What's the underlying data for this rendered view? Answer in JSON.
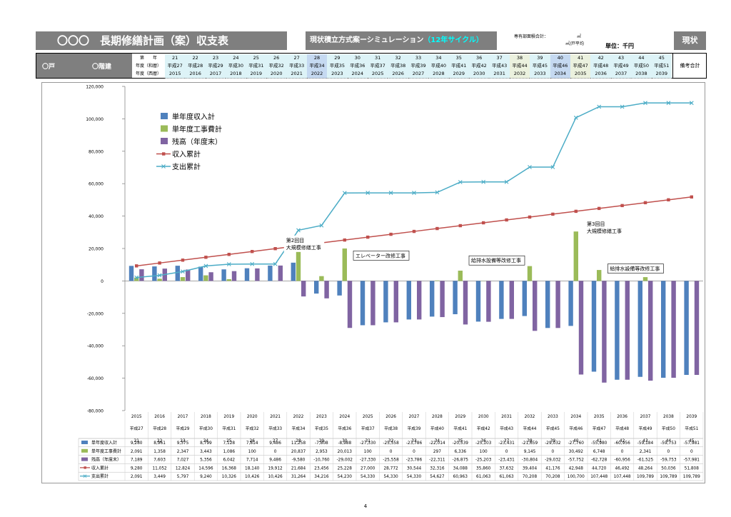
{
  "header": {
    "title": "〇〇〇　長期修繕計画（案）収支表",
    "simulation_label": "現状積立方式案ーシミュレーション",
    "cycle_label": "（12年サイクル）",
    "area_label": "専有部面積合計：",
    "area_unit1": "㎡",
    "area_unit2": "㎡/戸平均",
    "unit_label": "単位：千円",
    "status_label": "現状"
  },
  "year_header": {
    "units_label": "〇戸",
    "stories_label": "〇階建",
    "row_labels": [
      "第　　年",
      "年度（和暦）",
      "年度（西暦）"
    ],
    "period_numbers": [
      "21",
      "22",
      "23",
      "24",
      "25",
      "26",
      "27",
      "28",
      "29",
      "30",
      "31",
      "32",
      "33",
      "34",
      "35",
      "36",
      "37",
      "38",
      "39",
      "40",
      "41",
      "42",
      "43",
      "44",
      "45"
    ],
    "heisei": [
      "平成27",
      "平成28",
      "平成29",
      "平成30",
      "平成31",
      "平成32",
      "平成33",
      "平成34",
      "平成35",
      "平成36",
      "平成37",
      "平成38",
      "平成39",
      "平成40",
      "平成41",
      "平成42",
      "平成43",
      "平成44",
      "平成45",
      "平成46",
      "平成47",
      "平成48",
      "平成49",
      "平成50",
      "平成51"
    ],
    "years": [
      "2015",
      "2016",
      "2017",
      "2018",
      "2019",
      "2020",
      "2021",
      "2022",
      "2023",
      "2024",
      "2025",
      "2026",
      "2027",
      "2028",
      "2029",
      "2030",
      "2031",
      "2032",
      "2033",
      "2034",
      "2035",
      "2036",
      "2037",
      "2038",
      "2039"
    ],
    "highlight_colors": {
      "28": "#c5d9f1",
      "38": "#ebf1de",
      "40": "#c5d9f1",
      "41": "#ebf1de"
    },
    "remarks_label": "備考合計"
  },
  "chart_data": {
    "type": "bar",
    "ylim": [
      -80000,
      120000
    ],
    "yticks": [
      -80000,
      -60000,
      -40000,
      -20000,
      0,
      20000,
      40000,
      60000,
      80000,
      100000,
      120000
    ],
    "ytick_labels": [
      "-80,000",
      "-60,000",
      "-40,000",
      "-20,000",
      "0",
      "20,000",
      "40,000",
      "60,000",
      "80,000",
      "100,000",
      "120,000"
    ],
    "categories": [
      "2015",
      "2016",
      "2017",
      "2018",
      "2019",
      "2020",
      "2021",
      "2022",
      "2023",
      "2024",
      "2025",
      "2026",
      "2027",
      "2028",
      "2029",
      "2030",
      "2031",
      "2032",
      "2033",
      "2034",
      "2035",
      "2036",
      "2037",
      "2038",
      "2039"
    ],
    "category_heisei": [
      "平成27",
      "平成28",
      "平成29",
      "平成30",
      "平成31",
      "平成32",
      "平成33",
      "平成34",
      "平成35",
      "平成36",
      "平成37",
      "平成38",
      "平成39",
      "平成40",
      "平成41",
      "平成42",
      "平成43",
      "平成44",
      "平成45",
      "平成46",
      "平成47",
      "平成48",
      "平成49",
      "平成50",
      "平成51"
    ],
    "category_period": [
      "21",
      "22",
      "23",
      "24",
      "25",
      "26",
      "27",
      "28",
      "29",
      "30",
      "31",
      "32",
      "33",
      "34",
      "35",
      "36",
      "37",
      "38",
      "39",
      "40",
      "41",
      "42",
      "43",
      "44",
      "45"
    ],
    "series": [
      {
        "name": "単年度収入計",
        "kind": "bar",
        "color": "#4f81bd",
        "values": [
          9280,
          8961,
          9375,
          8799,
          7128,
          7814,
          9486,
          11258,
          -7808,
          -8988,
          -27330,
          -25558,
          -23786,
          -22014,
          -20539,
          -25103,
          -23431,
          -21659,
          -29032,
          -27760,
          -55980,
          -60956,
          -59184,
          -59753,
          -57981
        ],
        "labels": [
          "9,280",
          "8,961",
          "9,375",
          "8,799",
          "7,128",
          "7,814",
          "9,486",
          "11,258",
          "-7,808",
          "-8,988",
          "-27,330",
          "-25,558",
          "-23,786",
          "-22,014",
          "-20,539",
          "-25,103",
          "-23,431",
          "-21,659",
          "-29,032",
          "-27,760",
          "-55,980",
          "-60,956",
          "-59,184",
          "-59,753",
          "-57,981"
        ]
      },
      {
        "name": "単年度工事費計",
        "kind": "bar",
        "color": "#9bbb59",
        "values": [
          2091,
          1358,
          2347,
          3443,
          1086,
          100,
          0,
          20837,
          2953,
          20013,
          100,
          0,
          0,
          297,
          6336,
          100,
          0,
          9145,
          0,
          30492,
          6748,
          0,
          2341,
          0,
          0
        ],
        "labels": [
          "2,091",
          "1,358",
          "2,347",
          "3,443",
          "1,086",
          "100",
          "0",
          "20,837",
          "2,953",
          "20,013",
          "100",
          "0",
          "0",
          "297",
          "6,336",
          "100",
          "0",
          "9,145",
          "0",
          "30,492",
          "6,748",
          "0",
          "2,341",
          "0",
          "0"
        ]
      },
      {
        "name": "残高（年度末）",
        "kind": "bar",
        "color": "#8064a2",
        "values": [
          7189,
          7603,
          7027,
          5356,
          6042,
          7714,
          9486,
          -9580,
          -10760,
          -29002,
          -27330,
          -25558,
          -23786,
          -22311,
          -26875,
          -25203,
          -23431,
          -30804,
          -29032,
          -57752,
          -62728,
          -60956,
          -61525,
          -59753,
          -57981
        ],
        "labels": [
          "7,189",
          "7,603",
          "7,027",
          "5,356",
          "6,042",
          "7,714",
          "9,486",
          "-9,580",
          "-10,760",
          "-29,002",
          "-27,330",
          "-25,558",
          "-23,786",
          "-22,311",
          "-26,875",
          "-25,203",
          "-23,431",
          "-30,804",
          "-29,032",
          "-57,752",
          "-62,728",
          "-60,956",
          "-61,525",
          "-59,753",
          "-57,981"
        ]
      },
      {
        "name": "収入累計",
        "kind": "line",
        "color": "#c0504d",
        "marker": "square",
        "values": [
          9280,
          11052,
          12824,
          14596,
          16368,
          18140,
          19912,
          21684,
          23456,
          25228,
          27000,
          28772,
          30544,
          32316,
          34088,
          35860,
          37632,
          39404,
          41176,
          42948,
          44720,
          46492,
          48264,
          50036,
          51808
        ],
        "labels": [
          "9,280",
          "11,052",
          "12,824",
          "14,596",
          "16,368",
          "18,140",
          "19,912",
          "21,684",
          "23,456",
          "25,228",
          "27,000",
          "28,772",
          "30,544",
          "32,316",
          "34,088",
          "35,860",
          "37,632",
          "39,404",
          "41,176",
          "42,948",
          "44,720",
          "46,492",
          "48,264",
          "50,036",
          "51,808"
        ]
      },
      {
        "name": "支出累計",
        "kind": "line",
        "color": "#4bacc6",
        "marker": "x",
        "values": [
          2091,
          3449,
          5797,
          9240,
          10326,
          10426,
          10426,
          31264,
          34216,
          54230,
          54330,
          54330,
          54330,
          54627,
          60963,
          61063,
          61063,
          70208,
          70208,
          100700,
          107448,
          107448,
          109789,
          109789,
          109789
        ],
        "labels": [
          "2,091",
          "3,449",
          "5,797",
          "9,240",
          "10,326",
          "10,426",
          "10,426",
          "31,264",
          "34,216",
          "54,230",
          "54,330",
          "54,330",
          "54,330",
          "54,627",
          "60,963",
          "61,063",
          "61,063",
          "70,208",
          "70,208",
          "100,700",
          "107,448",
          "107,448",
          "109,789",
          "109,789",
          "109,789"
        ]
      }
    ],
    "annotations": [
      {
        "lines": [
          "第2回目",
          "大規模修繕工事"
        ],
        "category": "2022",
        "value": 28000
      },
      {
        "lines": [
          "エレベーター改修工事"
        ],
        "category": "2025",
        "value": 18500
      },
      {
        "lines": [
          "給排水設備等改修工事"
        ],
        "category": "2030",
        "value": 15500
      },
      {
        "lines": [
          "第3回目",
          "大規模修繕工事"
        ],
        "category": "2035",
        "value": 38000
      },
      {
        "lines": [
          "給排水設備等改修工事"
        ],
        "category": "2036",
        "value": 10500
      }
    ],
    "legend_position": "top-left"
  },
  "page_number": "4"
}
